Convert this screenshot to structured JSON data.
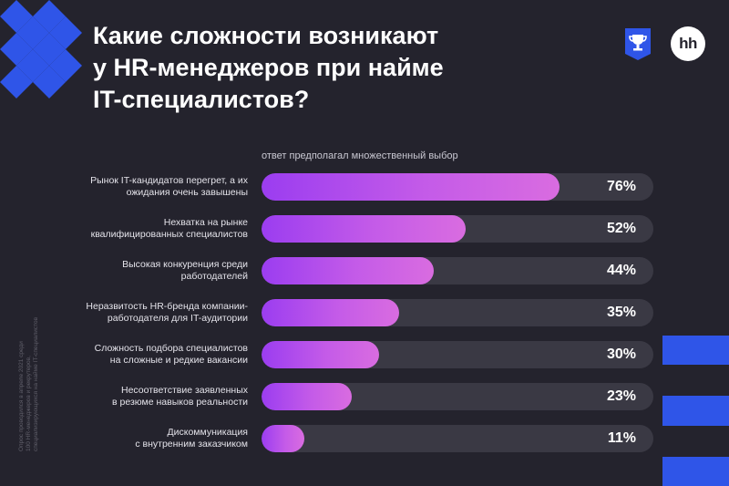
{
  "title_lines": [
    "Какие сложности возникают",
    "у HR-менеджеров при найме",
    "IT-специалистов?"
  ],
  "note": "ответ предполагал множественный выбор",
  "logo": {
    "text": "hh",
    "award_icon": "trophy-shield-icon"
  },
  "side_note": [
    "Опрос проводился в апреле 2021 среди",
    "100 HR-менеджеров и рекрутеров,",
    "специализирующихся на найме IT-специалистов"
  ],
  "colors": {
    "background": "#24232d",
    "accent_blue": "#2f55e8",
    "bar_track": "#3a3944",
    "bar_fill_start": "#9b3df0",
    "bar_fill_end": "#d96ce0"
  },
  "chart_data": {
    "type": "bar",
    "orientation": "horizontal",
    "categories": [
      "Рынок IT-кандидатов перегрет, а их ожидания очень завышены",
      "Нехватка на рынке квалифицированных специалистов",
      "Высокая конкуренция среди работодателей",
      "Неразвитость HR-бренда компании-работодателя для IT-аудитории",
      "Сложность подбора специалистов на сложные и редкие вакансии",
      "Несоответствие заявленных в резюме навыков реальности",
      "Дискоммуникация с внутренним заказчиком"
    ],
    "label_lines": [
      [
        "Рынок IT-кандидатов перегрет, а их",
        "ожидания очень завышены"
      ],
      [
        "Нехватка на рынке",
        "квалифицированных специалистов"
      ],
      [
        "Высокая конкуренция среди",
        "работодателей"
      ],
      [
        "Неразвитость HR-бренда компании-",
        "работодателя для IT-аудитории"
      ],
      [
        "Сложность подбора специалистов",
        "на сложные и редкие вакансии"
      ],
      [
        "Несоответствие заявленных",
        "в резюме навыков реальности"
      ],
      [
        "Дискоммуникация",
        "с внутренним заказчиком"
      ]
    ],
    "values": [
      76,
      52,
      44,
      35,
      30,
      23,
      11
    ],
    "value_labels": [
      "76%",
      "52%",
      "44%",
      "35%",
      "30%",
      "23%",
      "11%"
    ],
    "xlim": [
      0,
      100
    ],
    "grid": false,
    "legend": "none"
  }
}
